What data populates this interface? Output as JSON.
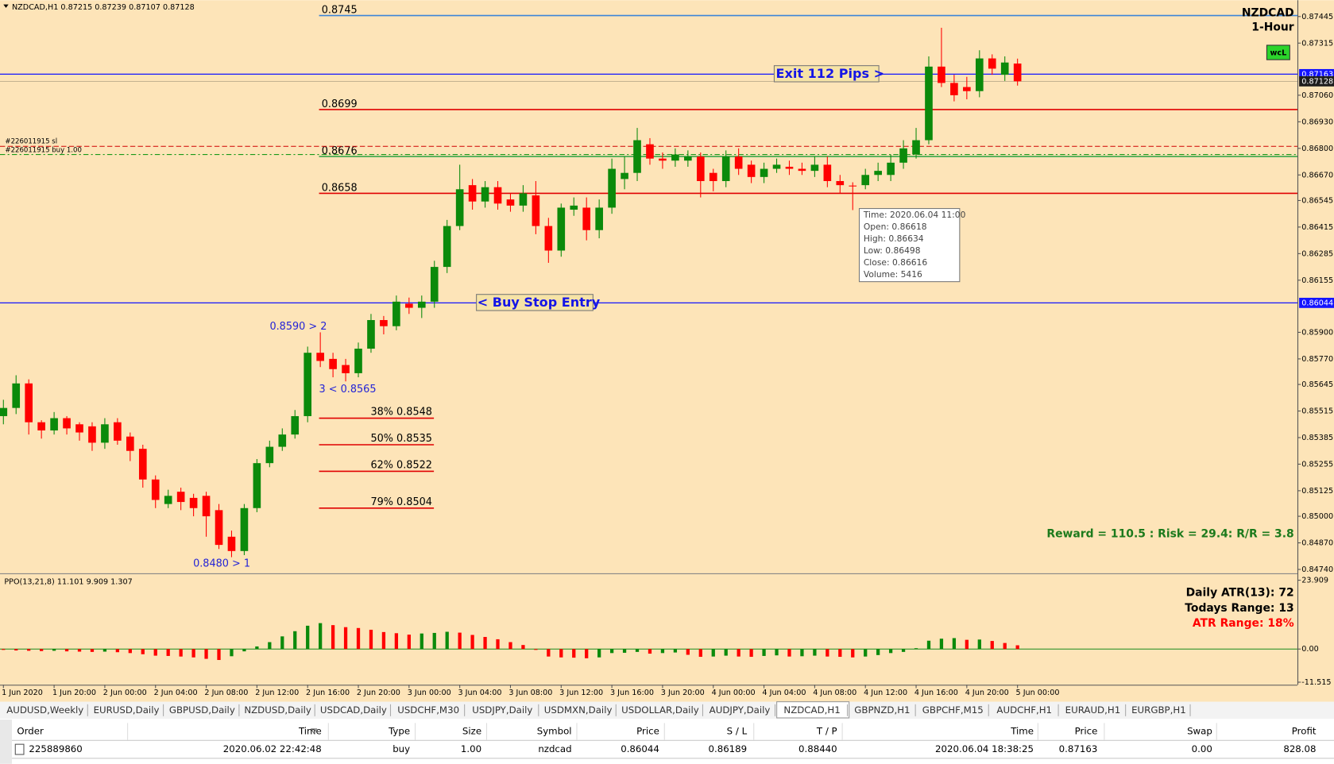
{
  "chart_data": [
    {
      "type": "candlestick",
      "header": "NZDCAD,H1  0.87215 0.87239 0.87107 0.87128",
      "symbol": "NZDCAD",
      "timeframe": "1-Hour",
      "badge": "wcL",
      "open": [
        0.8549,
        0.8553,
        0.8565,
        0.8546,
        0.8542,
        0.8548,
        0.8545,
        0.8544,
        0.8536,
        0.8546,
        0.8539,
        0.8533,
        0.8518,
        0.8506,
        0.8512,
        0.8509,
        0.851,
        0.8503,
        0.849,
        0.8483,
        0.8504,
        0.8526,
        0.8534,
        0.854,
        0.8549,
        0.858,
        0.8577,
        0.8574,
        0.857,
        0.8582,
        0.8596,
        0.8593,
        0.8604,
        0.8602,
        0.8605,
        0.8622,
        0.8642,
        0.8662,
        0.8654,
        0.8661,
        0.8655,
        0.8652,
        0.8657,
        0.8642,
        0.863,
        0.865,
        0.8651,
        0.864,
        0.8651,
        0.8665,
        0.8668,
        0.8682,
        0.8675,
        0.8674,
        0.8674,
        0.8676,
        0.8668,
        0.8664,
        0.8676,
        0.8672,
        0.8666,
        0.867,
        0.8671,
        0.867,
        0.8669,
        0.8672,
        0.8664,
        0.86618,
        0.8662,
        0.8667,
        0.8667,
        0.8673,
        0.8677,
        0.8684,
        0.872,
        0.8712,
        0.871,
        0.8708,
        0.8724,
        0.8716,
        0.87215
      ],
      "high": [
        0.8557,
        0.8569,
        0.8567,
        0.8547,
        0.8551,
        0.8549,
        0.8546,
        0.8546,
        0.8548,
        0.8548,
        0.8541,
        0.8535,
        0.852,
        0.8513,
        0.8514,
        0.8511,
        0.8512,
        0.8506,
        0.8493,
        0.8506,
        0.8528,
        0.8537,
        0.8543,
        0.8552,
        0.8583,
        0.859,
        0.858,
        0.8577,
        0.8585,
        0.8599,
        0.8598,
        0.8608,
        0.8607,
        0.8608,
        0.8625,
        0.8645,
        0.8672,
        0.8665,
        0.8664,
        0.8664,
        0.8658,
        0.8662,
        0.8664,
        0.8646,
        0.8653,
        0.8656,
        0.8656,
        0.8655,
        0.8675,
        0.8676,
        0.869,
        0.8685,
        0.8678,
        0.868,
        0.8679,
        0.8678,
        0.867,
        0.8679,
        0.868,
        0.8674,
        0.8673,
        0.8675,
        0.8674,
        0.8673,
        0.8676,
        0.8676,
        0.8667,
        0.86634,
        0.867,
        0.8673,
        0.8677,
        0.8684,
        0.869,
        0.8725,
        0.8739,
        0.8716,
        0.8715,
        0.8728,
        0.8726,
        0.8725,
        0.87239
      ],
      "low": [
        0.8545,
        0.855,
        0.854,
        0.8538,
        0.854,
        0.854,
        0.8537,
        0.8532,
        0.8533,
        0.8535,
        0.8527,
        0.8514,
        0.8504,
        0.8504,
        0.8503,
        0.85,
        0.849,
        0.8484,
        0.848,
        0.8481,
        0.8502,
        0.8524,
        0.8532,
        0.8538,
        0.8546,
        0.8573,
        0.8568,
        0.8566,
        0.8568,
        0.858,
        0.8589,
        0.8591,
        0.8599,
        0.8597,
        0.8602,
        0.8619,
        0.864,
        0.865,
        0.8651,
        0.865,
        0.8649,
        0.8649,
        0.8638,
        0.8624,
        0.8627,
        0.8647,
        0.8635,
        0.8636,
        0.8648,
        0.866,
        0.8664,
        0.8672,
        0.867,
        0.8671,
        0.8671,
        0.8656,
        0.8659,
        0.8661,
        0.8667,
        0.8663,
        0.8663,
        0.8668,
        0.8667,
        0.8667,
        0.8666,
        0.8661,
        0.8658,
        0.86498,
        0.866,
        0.8664,
        0.8664,
        0.867,
        0.8675,
        0.8682,
        0.871,
        0.8703,
        0.8704,
        0.8705,
        0.8716,
        0.8713,
        0.87107
      ],
      "close": [
        0.8553,
        0.8565,
        0.8546,
        0.8542,
        0.8548,
        0.8543,
        0.8541,
        0.8536,
        0.8545,
        0.8537,
        0.8532,
        0.8518,
        0.8508,
        0.851,
        0.8507,
        0.8504,
        0.85,
        0.8486,
        0.8483,
        0.8504,
        0.8526,
        0.8534,
        0.854,
        0.8549,
        0.858,
        0.8576,
        0.8572,
        0.857,
        0.8582,
        0.8596,
        0.8593,
        0.8605,
        0.8602,
        0.8605,
        0.8622,
        0.8642,
        0.866,
        0.8654,
        0.8661,
        0.8653,
        0.8652,
        0.8658,
        0.8642,
        0.863,
        0.8651,
        0.8652,
        0.864,
        0.8651,
        0.867,
        0.8668,
        0.8684,
        0.8675,
        0.8674,
        0.8677,
        0.8676,
        0.8664,
        0.8664,
        0.8676,
        0.867,
        0.8666,
        0.867,
        0.8672,
        0.867,
        0.8669,
        0.8672,
        0.8664,
        0.8662,
        0.86616,
        0.8667,
        0.8669,
        0.8673,
        0.868,
        0.8684,
        0.872,
        0.8712,
        0.8706,
        0.8708,
        0.8724,
        0.8719,
        0.8722,
        0.87128
      ],
      "up_color": "#0b8a0b",
      "down_color": "#ff0000",
      "ylim": [
        0.84725,
        0.87525
      ],
      "yticks": [
        0.87445,
        0.87315,
        {
          "value": 0.8706,
          "label": "0.87060"
        },
        {
          "value": 0.8693,
          "label": "0.86930"
        },
        {
          "value": 0.868,
          "label": "0.86800"
        },
        {
          "value": 0.8667,
          "label": "0.86670"
        },
        0.86545,
        0.86415,
        0.86285,
        0.86155,
        {
          "value": 0.859,
          "label": "0.85900"
        },
        {
          "value": 0.8577,
          "label": "0.85770"
        },
        0.85645,
        0.85515,
        0.85385,
        0.85255,
        0.85125,
        {
          "value": 0.85,
          "label": "0.85000"
        },
        {
          "value": 0.8487,
          "label": "0.84870"
        },
        {
          "value": 0.8474,
          "label": "0.84740"
        }
      ],
      "price_marks": [
        {
          "value": 0.87163,
          "color": "#1414ff"
        },
        {
          "value": 0.87128,
          "color": "#1e1e1e"
        },
        {
          "value": 0.86044,
          "color": "#1414ff"
        }
      ],
      "level_lines": [
        {
          "value": 0.8745,
          "color": "#3d86d8"
        },
        {
          "value": 0.8699,
          "color": "#e00000"
        },
        {
          "value": 0.8676,
          "color": "#3aa64a"
        },
        {
          "value": 0.8658,
          "color": "#e00000"
        }
      ],
      "trade_lines": [
        {
          "label": "#226011915 sl",
          "value": 0.8681,
          "color": "#d00000"
        },
        {
          "label": "#226011915 buy 1.00",
          "value": 0.8677,
          "color": "#1a9a1a"
        }
      ],
      "fib_levels": [
        {
          "label": "38% 0.8548",
          "value": 0.8548
        },
        {
          "label": "50% 0.8535",
          "value": 0.8535
        },
        {
          "label": "62% 0.8522",
          "value": 0.8522
        },
        {
          "label": "79% 0.8504",
          "value": 0.8504
        }
      ],
      "annotations": {
        "exit": "Exit 112 Pips >",
        "entry": "< Buy Stop Entry",
        "point_2": "0.8590 > 2",
        "point_3": "3 < 0.8565",
        "point_1": "0.8480 > 1",
        "reward": "Reward = 110.5 : Risk = 29.4: R/R = 3.8"
      },
      "tooltip": [
        "Time: 2020.06.04 11:00",
        "Open: 0.86618",
        "High: 0.86634",
        "Low:  0.86498",
        "Close: 0.86616",
        "Volume: 5416"
      ],
      "x_labels": [
        "1 Jun 2020",
        "1 Jun 20:00",
        "2 Jun 00:00",
        "2 Jun 04:00",
        "2 Jun 08:00",
        "2 Jun 12:00",
        "2 Jun 16:00",
        "2 Jun 20:00",
        "3 Jun 00:00",
        "3 Jun 04:00",
        "3 Jun 08:00",
        "3 Jun 12:00",
        "3 Jun 16:00",
        "3 Jun 20:00",
        "4 Jun 00:00",
        "4 Jun 04:00",
        "4 Jun 08:00",
        "4 Jun 12:00",
        "4 Jun 16:00",
        "4 Jun 20:00",
        "5 Jun 00:00"
      ]
    },
    {
      "type": "bar",
      "title": "PPO(13,21,8) 11.101 9.909 1.307",
      "values": [
        -0.3,
        -0.5,
        -0.6,
        -0.7,
        -0.6,
        -0.8,
        -0.9,
        -1.0,
        -0.9,
        -1.1,
        -1.4,
        -1.8,
        -2.3,
        -2.4,
        -2.6,
        -2.9,
        -3.4,
        -3.8,
        -2.5,
        -0.8,
        0.9,
        2.4,
        4.4,
        6.2,
        8.1,
        9.0,
        8.3,
        7.6,
        7.3,
        6.7,
        5.9,
        5.5,
        5.0,
        5.4,
        5.6,
        6.0,
        5.7,
        4.9,
        4.2,
        3.4,
        2.4,
        1.4,
        -0.3,
        -2.6,
        -2.9,
        -3.0,
        -3.2,
        -2.9,
        -1.4,
        -1.3,
        -1.0,
        -1.6,
        -1.4,
        -1.2,
        -2.0,
        -2.7,
        -2.6,
        -2.3,
        -2.6,
        -2.7,
        -2.4,
        -2.2,
        -2.6,
        -2.5,
        -2.3,
        -2.6,
        -2.7,
        -2.9,
        -2.6,
        -2.1,
        -1.4,
        -1.0,
        0.3,
        2.9,
        3.6,
        3.8,
        3.2,
        3.3,
        2.8,
        2.1,
        1.3
      ],
      "up_color": "#0b8a0b",
      "down_color": "#ff0000",
      "ylim": [
        -12.4,
        25.7
      ],
      "yticks": [
        23.909,
        {
          "value": 0,
          "label": "0.00"
        },
        -11.515
      ],
      "notes": [
        {
          "text": "Daily ATR(13): 72",
          "color": "#000000"
        },
        {
          "text": "Todays Range: 13",
          "color": "#000000"
        },
        {
          "text": "ATR Range: 18%",
          "color": "#ff0000"
        }
      ]
    }
  ],
  "window": {
    "tabs": [
      {
        "label": "AUDUSD,Weekly"
      },
      {
        "label": "EURUSD,Daily"
      },
      {
        "label": "GBPUSD,Daily"
      },
      {
        "label": "NZDUSD,Daily"
      },
      {
        "label": "USDCAD,Daily"
      },
      {
        "label": "USDCHF,M30"
      },
      {
        "label": "USDJPY,Daily"
      },
      {
        "label": "USDMXN,Daily"
      },
      {
        "label": "USDOLLAR,Daily"
      },
      {
        "label": "AUDJPY,Daily"
      },
      {
        "label": "NZDCAD,H1",
        "active": true
      },
      {
        "label": "GBPNZD,H1"
      },
      {
        "label": "GBPCHF,M15"
      },
      {
        "label": "AUDCHF,H1"
      },
      {
        "label": "EURAUD,H1"
      },
      {
        "label": "EURGBP,H1"
      }
    ],
    "orders": {
      "columns": [
        "Order",
        "Time",
        "Type",
        "Size",
        "Symbol",
        "Price",
        "S / L",
        "T / P",
        "Time",
        "Price",
        "Swap",
        "Profit"
      ],
      "rows": [
        [
          "225889860",
          "2020.06.02 22:42:48",
          "buy",
          "1.00",
          "nzdcad",
          "0.86044",
          "0.86189",
          "0.88440",
          "2020.06.04 18:38:25",
          "0.87163",
          "0.00",
          "828.08"
        ]
      ]
    }
  }
}
